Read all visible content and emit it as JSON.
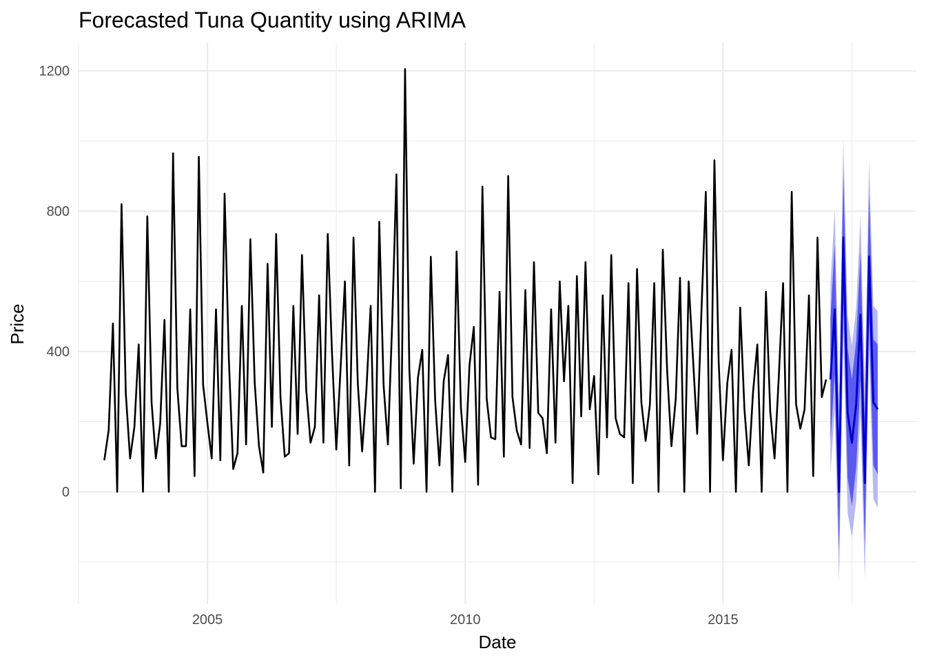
{
  "chart_data": {
    "type": "line",
    "title": "Forecasted Tuna Quantity using ARIMA",
    "xlabel": "Date",
    "ylabel": "Price",
    "x_ticks": [
      "2005",
      "2010",
      "2015"
    ],
    "y_ticks": [
      "0",
      "400",
      "800",
      "1200"
    ],
    "xlim": [
      2002.5,
      2018.75
    ],
    "ylim": [
      -320,
      1280
    ],
    "grid": true,
    "colors": {
      "history": "#000000",
      "forecast": "#0000cd",
      "band80": "#5a5aee",
      "band95": "#b8b8f4",
      "grid": "#ebebeb"
    },
    "series": [
      {
        "role": "history",
        "start": 2003.0,
        "step": 0.08333,
        "values": [
          90,
          175,
          480,
          0,
          820,
          280,
          95,
          185,
          420,
          0,
          785,
          255,
          95,
          195,
          490,
          0,
          965,
          295,
          130,
          130,
          520,
          45,
          955,
          305,
          195,
          95,
          520,
          90,
          850,
          375,
          65,
          110,
          530,
          135,
          720,
          310,
          130,
          55,
          650,
          185,
          735,
          270,
          100,
          110,
          530,
          165,
          675,
          290,
          140,
          185,
          560,
          140,
          735,
          395,
          120,
          355,
          600,
          75,
          725,
          310,
          115,
          290,
          530,
          0,
          770,
          305,
          135,
          480,
          905,
          10,
          1205,
          350,
          80,
          325,
          405,
          0,
          670,
          260,
          75,
          315,
          390,
          0,
          685,
          240,
          85,
          360,
          470,
          20,
          870,
          265,
          155,
          150,
          570,
          100,
          900,
          270,
          175,
          135,
          575,
          125,
          655,
          225,
          210,
          110,
          520,
          140,
          600,
          315,
          530,
          25,
          615,
          215,
          655,
          235,
          330,
          50,
          560,
          155,
          675,
          210,
          165,
          155,
          595,
          25,
          635,
          255,
          145,
          250,
          595,
          0,
          690,
          345,
          130,
          265,
          610,
          0,
          600,
          385,
          165,
          520,
          855,
          0,
          945,
          370,
          90,
          310,
          405,
          0,
          525,
          235,
          75,
          285,
          420,
          0,
          570,
          230,
          95,
          330,
          595,
          0,
          855,
          250,
          180,
          235,
          560,
          45,
          725,
          270,
          320
        ]
      },
      {
        "role": "forecast",
        "start": 2017.0833,
        "step": 0.08333,
        "values": [
          320,
          520,
          0,
          725,
          225,
          140,
          250,
          505,
          25,
          670,
          255,
          235
        ],
        "lo80": [
          140,
          335,
          -170,
          540,
          40,
          -40,
          70,
          320,
          -155,
          490,
          75,
          50
        ],
        "hi80": [
          495,
          705,
          170,
          910,
          410,
          320,
          430,
          685,
          205,
          850,
          435,
          420
        ],
        "lo95": [
          50,
          235,
          -255,
          440,
          -60,
          -130,
          -25,
          225,
          -250,
          395,
          -20,
          -45
        ],
        "hi95": [
          590,
          805,
          265,
          1005,
          505,
          415,
          525,
          785,
          300,
          945,
          530,
          515
        ]
      }
    ]
  }
}
